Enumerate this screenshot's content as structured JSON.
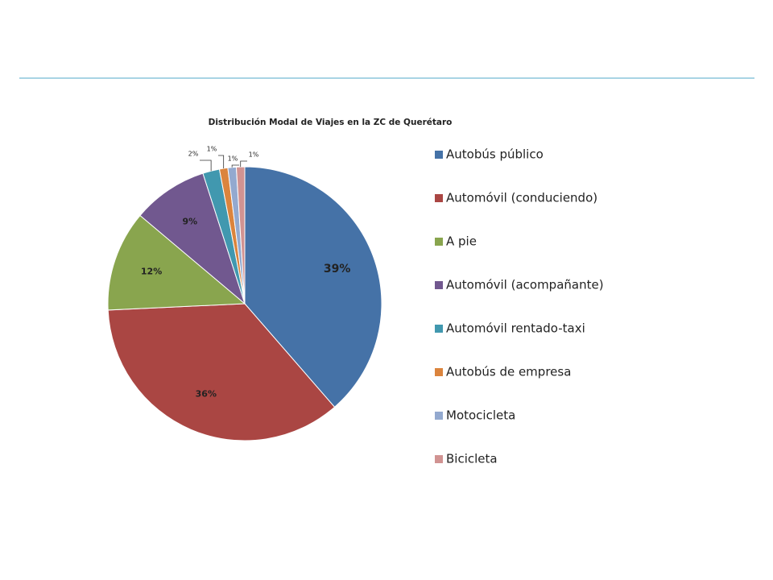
{
  "chart_data": {
    "type": "pie",
    "title": "Distribución Modal de Viajes en la ZC de Querétaro",
    "categories": [
      "Autobús público",
      "Automóvil (conduciendo)",
      "A pie",
      "Automóvil (acompañante)",
      "Automóvil rentado-taxi",
      "Autobús de empresa",
      "Motocicleta",
      "Bicicleta"
    ],
    "values": [
      39,
      36,
      12,
      9,
      2,
      1,
      1,
      1
    ],
    "value_labels": [
      "39%",
      "36%",
      "12%",
      "9%",
      "2%",
      "1%",
      "1%",
      "1%"
    ],
    "colors": [
      "#4572a7",
      "#aa4643",
      "#89a54e",
      "#71588f",
      "#4198af",
      "#db843d",
      "#93a9cf",
      "#d19392"
    ],
    "legend": "right"
  }
}
